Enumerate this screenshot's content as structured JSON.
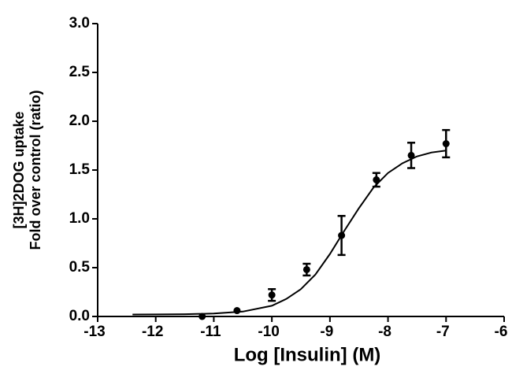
{
  "chart_data": {
    "type": "scatter",
    "x": [
      -11.2,
      -10.6,
      -10,
      -9.4,
      -8.8,
      -8.2,
      -7.6,
      -7.0
    ],
    "values": [
      0.0,
      0.06,
      0.22,
      0.48,
      0.83,
      1.4,
      1.65,
      1.77
    ],
    "errors": [
      0.0,
      0.0,
      0.06,
      0.06,
      0.2,
      0.07,
      0.13,
      0.14
    ],
    "color": "#000000",
    "curve": {
      "x": [
        -12.4,
        -12,
        -11.5,
        -11,
        -10.5,
        -10,
        -9.75,
        -9.5,
        -9.25,
        -9,
        -8.75,
        -8.5,
        -8.25,
        -8,
        -7.75,
        -7.5,
        -7.25,
        -7
      ],
      "values": [
        0.02,
        0.021,
        0.023,
        0.03,
        0.05,
        0.11,
        0.18,
        0.28,
        0.43,
        0.64,
        0.88,
        1.11,
        1.32,
        1.47,
        1.57,
        1.64,
        1.68,
        1.7
      ]
    },
    "xlabel": "Log [Insulin] (M)",
    "ylabel": [
      "[3H]2DOG uptake",
      "Fold over control (ratio)"
    ],
    "xlim": [
      -13,
      -6
    ],
    "xticks": [
      -13,
      -12,
      -11,
      -10,
      -9,
      -8,
      -7,
      -6
    ],
    "ylim": [
      0,
      3
    ],
    "yticks": [
      {
        "value": 0,
        "label": "0.0"
      },
      {
        "value": 0.5,
        "label": "0.5"
      },
      {
        "value": 1,
        "label": "1.0"
      },
      {
        "value": 1.5,
        "label": "1.5"
      },
      {
        "value": 2,
        "label": "2.0"
      },
      {
        "value": 2.5,
        "label": "2.5"
      },
      {
        "value": 3,
        "label": "3.0"
      }
    ]
  }
}
